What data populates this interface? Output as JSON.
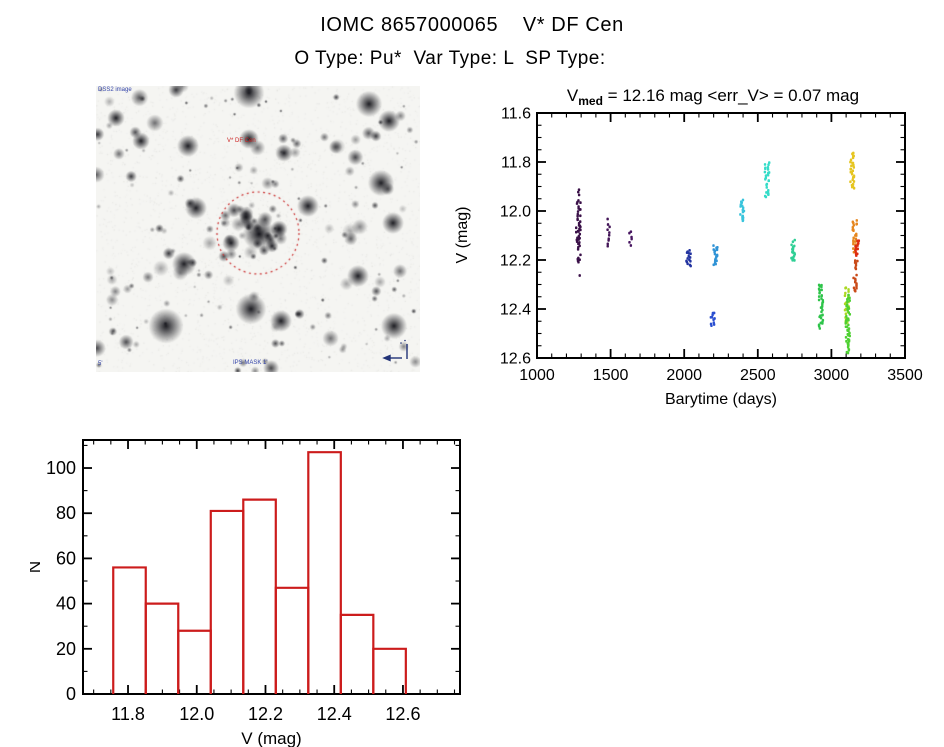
{
  "page": {
    "title": "IOMC 8657000065    V* DF Cen",
    "subtitle": "O Type: Pu*  Var Type: L  SP Type:"
  },
  "finder_chart": {
    "label_top_left": "DSS2 image",
    "label_target": "V* DF Cen",
    "label_bottom": "IPS MASK 1'",
    "label_bottom_left": "5'",
    "circle_color": "#cc3333",
    "compass_color": "#223377"
  },
  "chart_data": [
    {
      "type": "scatter",
      "title_v": "V",
      "title_sub": "med",
      "title_rest": " = 12.16 mag <err_V> = 0.07 mag",
      "xlabel": "Barytime (days)",
      "ylabel": "V (mag)",
      "xlim": [
        1000,
        3500
      ],
      "ylim_top": 11.6,
      "ylim_bottom": 12.6,
      "xticks": [
        1000,
        1500,
        2000,
        2500,
        3000,
        3500
      ],
      "xtick_labels": [
        "1000",
        "1500",
        "2000",
        "2500",
        "3000",
        "3500"
      ],
      "x_minor": 100,
      "yticks": [
        11.6,
        11.8,
        12.0,
        12.2,
        12.4,
        12.6
      ],
      "ytick_labels": [
        "11.6",
        "11.8",
        "12.0",
        "12.2",
        "12.4",
        "12.6"
      ],
      "y_minor": 0.05,
      "grid": false,
      "clusters": [
        {
          "x": 1281,
          "v1": 11.89,
          "v2": 11.94,
          "color": "#3a1048",
          "density": "sparse"
        },
        {
          "x": 1281,
          "v1": 11.955,
          "v2": 12.215,
          "color": "#3a1048",
          "density": "dense"
        },
        {
          "x": 1283,
          "v1": 12.25,
          "v2": 12.265,
          "color": "#3a1048",
          "density": "sparse"
        },
        {
          "x": 1483,
          "v1": 12.03,
          "v2": 12.15,
          "color": "#421457",
          "density": "sparse"
        },
        {
          "x": 1633,
          "v1": 12.07,
          "v2": 12.145,
          "color": "#471560",
          "density": "sparse"
        },
        {
          "x": 2030,
          "v1": 12.16,
          "v2": 12.235,
          "color": "#2233a0",
          "density": "dense"
        },
        {
          "x": 2195,
          "v1": 12.415,
          "v2": 12.47,
          "color": "#2a4fd0",
          "density": "dense"
        },
        {
          "x": 2213,
          "v1": 12.14,
          "v2": 12.22,
          "color": "#2f93d6",
          "density": "dense"
        },
        {
          "x": 2393,
          "v1": 11.955,
          "v2": 12.04,
          "color": "#38c4dc",
          "density": "dense"
        },
        {
          "x": 2563,
          "v1": 11.8,
          "v2": 11.945,
          "color": "#35dcc8",
          "density": "dense"
        },
        {
          "x": 2739,
          "v1": 12.12,
          "v2": 12.21,
          "color": "#2fcf95",
          "density": "dense"
        },
        {
          "x": 2929,
          "v1": 12.3,
          "v2": 12.48,
          "color": "#2ec44a",
          "density": "dense"
        },
        {
          "x": 3103,
          "v1": 12.31,
          "v2": 12.46,
          "color": "#aad822",
          "density": "dense"
        },
        {
          "x": 3112,
          "v1": 12.34,
          "v2": 12.58,
          "color": "#4ed032",
          "density": "dense"
        },
        {
          "x": 3140,
          "v1": 11.76,
          "v2": 11.915,
          "color": "#e6c520",
          "density": "dense"
        },
        {
          "x": 3158,
          "v1": 12.04,
          "v2": 12.17,
          "color": "#e6861e",
          "density": "dense"
        },
        {
          "x": 3174,
          "v1": 12.12,
          "v2": 12.19,
          "color": "#dd2c10",
          "density": "dense"
        },
        {
          "x": 3164,
          "v1": 12.2,
          "v2": 12.33,
          "color": "#c94a18",
          "density": "dense"
        }
      ]
    },
    {
      "type": "bar",
      "title": "",
      "xlabel": "V (mag)",
      "ylabel": "N",
      "xlim": [
        11.669,
        12.766
      ],
      "ylim": [
        0,
        112.4
      ],
      "xticks": [
        11.8,
        12.0,
        12.2,
        12.4,
        12.6
      ],
      "xtick_labels": [
        "11.8",
        "12.0",
        "12.2",
        "12.4",
        "12.6"
      ],
      "x_minor": 0.05,
      "yticks": [
        0,
        20,
        40,
        60,
        80,
        100
      ],
      "ytick_labels": [
        "0",
        "20",
        "40",
        "60",
        "80",
        "100"
      ],
      "y_minor": 10,
      "grid": false,
      "bin_start": 11.757,
      "bin_width": 0.0946,
      "counts": [
        56,
        40,
        28,
        81,
        86,
        47,
        107,
        35,
        20
      ],
      "bar_color": "#cc1c1c"
    }
  ]
}
